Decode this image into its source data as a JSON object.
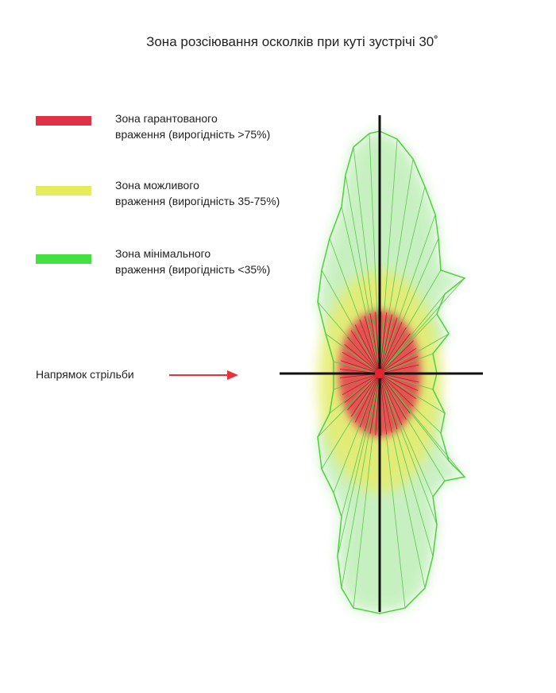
{
  "title": "Зона розсіювання осколків при куті зустрічі 30˚",
  "legend": [
    {
      "color": "#e03048",
      "lines": [
        "Зона гарантованого",
        "враження (вирогідність >75%)"
      ]
    },
    {
      "color": "#e4ec5a",
      "lines": [
        "Зона можливого",
        "враження (вирогідність 35-75%)"
      ]
    },
    {
      "color": "#44e040",
      "lines": [
        "Зона мінімального",
        "враження (вирогідність <35%)"
      ]
    }
  ],
  "direction_label": "Напрямок стрільби"
}
